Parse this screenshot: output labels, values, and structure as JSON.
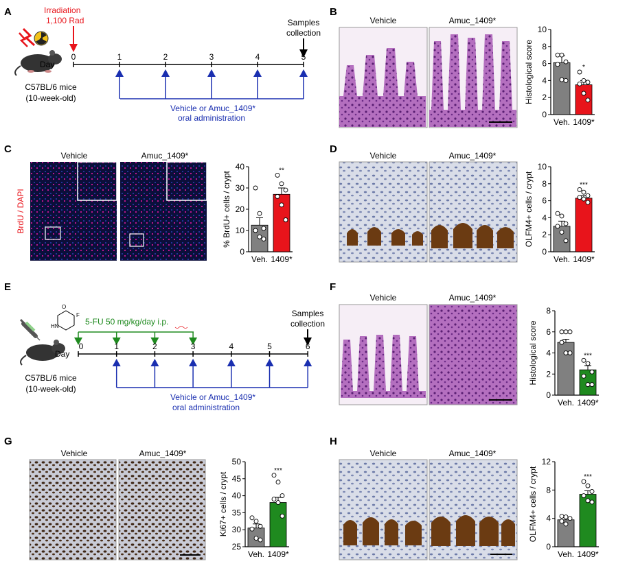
{
  "panels": {
    "A": {
      "letter": "A",
      "irradiation": "Irradiation",
      "dose": "1,100 Rad",
      "samples1": "Samples",
      "samples2": "collection",
      "day": "Day",
      "mouse1": "C57BL/6 mice",
      "mouse2": "(10-week-old)",
      "days": [
        "0",
        "1",
        "2",
        "3",
        "4",
        "5"
      ],
      "admin1": "Vehicle or Amuc_1409*",
      "admin2": "oral administration",
      "colors": {
        "irradiation": "#e8141b",
        "admin": "#1a2fb0"
      }
    },
    "B": {
      "letter": "B",
      "img_left": "Vehicle",
      "img_right": "Amuc_1409*"
    },
    "C": {
      "letter": "C",
      "img_left": "Vehicle",
      "img_right": "Amuc_1409*",
      "stain_label": "BrdU / DAPI"
    },
    "D": {
      "letter": "D",
      "img_left": "Vehicle",
      "img_right": "Amuc_1409*"
    },
    "E": {
      "letter": "E",
      "drug": "5-FU 50 mg/kg/day i.p.",
      "samples1": "Samples",
      "samples2": "collection",
      "day": "Day",
      "mouse1": "C57BL/6 mice",
      "mouse2": "(10-week-old)",
      "days": [
        "0",
        "1",
        "2",
        "3",
        "4",
        "5",
        "6"
      ],
      "admin1": "Vehicle or Amuc_1409*",
      "admin2": "oral administration",
      "colors": {
        "drug": "#1f8a1f",
        "admin": "#1a2fb0"
      }
    },
    "F": {
      "letter": "F",
      "img_left": "Vehicle",
      "img_right": "Amuc_1409*"
    },
    "G": {
      "letter": "G",
      "img_left": "Vehicle",
      "img_right": "Amuc_1409*"
    },
    "H": {
      "letter": "H",
      "img_left": "Vehicle",
      "img_right": "Amuc_1409*"
    }
  },
  "chart_data": [
    {
      "id": "B",
      "type": "bar",
      "categories": [
        "Veh.",
        "1409*"
      ],
      "ylabel": "Histological score",
      "ylim": [
        0,
        10
      ],
      "yticks": [
        0,
        2,
        4,
        6,
        8,
        10
      ],
      "values": [
        6.1,
        3.5
      ],
      "errors": [
        0.8,
        0.5
      ],
      "points": [
        [
          7,
          7,
          6.2,
          5.9,
          4.1,
          4.0
        ],
        [
          5.0,
          4.0,
          3.8,
          3.6,
          2.5,
          1.7
        ]
      ],
      "significance": [
        "",
        "*"
      ],
      "colors": [
        "#808080",
        "#e8141b"
      ]
    },
    {
      "id": "C",
      "type": "bar",
      "categories": [
        "Veh.",
        "1409*"
      ],
      "ylabel": "% BrdU+ cells / crypt",
      "ylim": [
        0,
        40
      ],
      "yticks": [
        0,
        10,
        20,
        30,
        40
      ],
      "values": [
        12.5,
        27
      ],
      "errors": [
        3.5,
        3
      ],
      "points": [
        [
          30,
          18,
          11,
          10,
          7,
          6
        ],
        [
          36,
          32,
          29,
          26,
          22,
          15
        ]
      ],
      "significance": [
        "",
        "**"
      ],
      "colors": [
        "#808080",
        "#e8141b"
      ]
    },
    {
      "id": "D",
      "type": "bar",
      "categories": [
        "Veh.",
        "1409*"
      ],
      "ylabel": "OLFM4+ cells / crypt",
      "ylim": [
        0,
        10
      ],
      "yticks": [
        0,
        2,
        4,
        6,
        8,
        10
      ],
      "values": [
        3,
        6.3
      ],
      "errors": [
        0.6,
        0.3
      ],
      "points": [
        [
          4.5,
          4.2,
          3.3,
          3.0,
          2.3,
          1.3
        ],
        [
          7.3,
          7.0,
          6.6,
          6.4,
          6.2,
          5.8
        ]
      ],
      "significance": [
        "",
        "***"
      ],
      "colors": [
        "#808080",
        "#e8141b"
      ]
    },
    {
      "id": "F",
      "type": "bar",
      "categories": [
        "Veh.",
        "1409*"
      ],
      "ylabel": "Histological score",
      "ylim": [
        0,
        8
      ],
      "yticks": [
        0,
        2,
        4,
        6,
        8
      ],
      "values": [
        5,
        2.4
      ],
      "errors": [
        0.3,
        0.4
      ],
      "points": [
        [
          6,
          6,
          6,
          5,
          4,
          4
        ],
        [
          3.3,
          3.0,
          2.2,
          1.8,
          1.0,
          1.0
        ]
      ],
      "significance": [
        "",
        "***"
      ],
      "colors": [
        "#808080",
        "#1f8a1f"
      ]
    },
    {
      "id": "G",
      "type": "bar",
      "categories": [
        "Veh.",
        "1409*"
      ],
      "ylabel": "Ki67+ cells / crypt",
      "ylim": [
        25,
        50
      ],
      "yticks": [
        25,
        30,
        35,
        40,
        45,
        50
      ],
      "values": [
        30.5,
        38
      ],
      "errors": [
        1.2,
        1.5
      ],
      "points": [
        [
          33.5,
          32.5,
          31,
          30.2,
          27.5,
          27
        ],
        [
          46,
          44,
          40,
          39,
          38,
          34
        ]
      ],
      "significance": [
        "",
        "***"
      ],
      "colors": [
        "#808080",
        "#1f8a1f"
      ]
    },
    {
      "id": "H",
      "type": "bar",
      "categories": [
        "Veh.",
        "1409*"
      ],
      "ylabel": "OLFM4+ cells / crypt",
      "ylim": [
        0,
        12
      ],
      "yticks": [
        0,
        4,
        8,
        12
      ],
      "values": [
        3.8,
        7.4
      ],
      "errors": [
        0.3,
        0.5
      ],
      "points": [
        [
          4.3,
          4.2,
          4.0,
          3.6,
          3.2
        ],
        [
          9.2,
          8.6,
          7.8,
          7.2,
          6.5,
          6.3
        ]
      ],
      "significance": [
        "",
        "***"
      ],
      "colors": [
        "#808080",
        "#1f8a1f"
      ]
    }
  ]
}
